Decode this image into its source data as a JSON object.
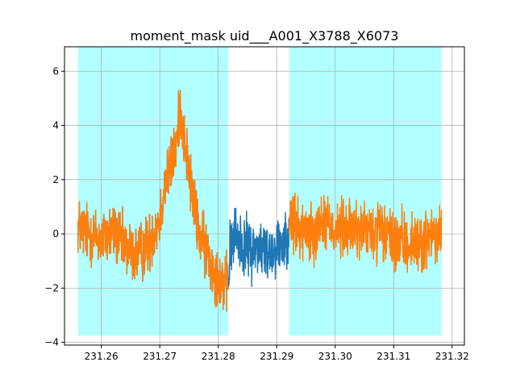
{
  "chart_data": {
    "type": "line",
    "title": "moment_mask uid___A001_X3788_X6073",
    "xlabel": "",
    "ylabel": "",
    "xlim": [
      231.2537,
      231.3221
    ],
    "ylim": [
      -4.1,
      6.9
    ],
    "grid": true,
    "x_ticks": [
      231.26,
      231.27,
      231.28,
      231.29,
      231.3,
      231.31,
      231.32
    ],
    "x_tick_labels": [
      "231.26",
      "231.27",
      "231.28",
      "231.29",
      "231.30",
      "231.31",
      "231.32"
    ],
    "y_ticks": [
      -4,
      -2,
      0,
      2,
      4,
      6
    ],
    "y_tick_labels": [
      "−4",
      "−2",
      "0",
      "2",
      "4",
      "6"
    ],
    "shaded_regions": [
      {
        "x_start": 231.256,
        "x_end": 231.2817,
        "y_start": -3.75,
        "y_end": 6.9
      },
      {
        "x_start": 231.2921,
        "x_end": 231.3182,
        "y_start": -3.75,
        "y_end": 6.9
      }
    ],
    "series": [
      {
        "color": "#1f77b4",
        "x": [
          231.256,
          231.258,
          231.26,
          231.262,
          231.264,
          231.266,
          231.268,
          231.27,
          231.271,
          231.272,
          231.273,
          231.2735,
          231.274,
          231.275,
          231.276,
          231.277,
          231.278,
          231.279,
          231.28,
          231.281,
          231.2817,
          231.282,
          231.283,
          231.284,
          231.285,
          231.286,
          231.287,
          231.288,
          231.289,
          231.29,
          231.291,
          231.2921,
          231.294,
          231.296,
          231.298,
          231.3,
          231.302,
          231.304,
          231.306,
          231.308,
          231.31,
          231.312,
          231.314,
          231.316,
          231.318
        ],
        "y": [
          0.3,
          0.0,
          -0.2,
          0.1,
          -0.5,
          -0.8,
          -0.4,
          0.6,
          2.0,
          2.5,
          3.5,
          4.8,
          3.8,
          2.3,
          0.8,
          -0.2,
          -0.6,
          -1.2,
          -1.6,
          -1.8,
          -1.9,
          -0.6,
          0.0,
          -0.4,
          -0.5,
          -0.6,
          -0.4,
          -0.7,
          -0.6,
          -0.5,
          -0.3,
          0.3,
          0.2,
          0.1,
          0.5,
          0.2,
          0.1,
          0.2,
          0.0,
          0.1,
          -0.3,
          -0.4,
          -0.3,
          -0.2,
          0.0
        ],
        "noise_amplitude": 0.9,
        "x_start": 231.256,
        "x_end": 231.2921
      },
      {
        "color": "#ff7f0e",
        "x": [
          231.256,
          231.258,
          231.26,
          231.262,
          231.264,
          231.266,
          231.268,
          231.27,
          231.271,
          231.272,
          231.273,
          231.2735,
          231.274,
          231.275,
          231.276,
          231.277,
          231.278,
          231.279,
          231.28,
          231.281,
          231.2817,
          231.282,
          231.283,
          231.284,
          231.285,
          231.286,
          231.287,
          231.288,
          231.289,
          231.29,
          231.291,
          231.2921,
          231.294,
          231.296,
          231.298,
          231.3,
          231.302,
          231.304,
          231.306,
          231.308,
          231.31,
          231.312,
          231.314,
          231.316,
          231.318
        ],
        "y": [
          0.3,
          0.0,
          -0.2,
          0.1,
          -0.5,
          -0.8,
          -0.4,
          0.6,
          2.0,
          2.5,
          3.5,
          4.8,
          3.8,
          2.3,
          0.8,
          -0.2,
          -0.6,
          -1.2,
          -1.6,
          -1.8,
          -1.9,
          -0.6,
          0.0,
          -0.4,
          -0.5,
          -0.6,
          -0.4,
          -0.7,
          -0.6,
          -0.5,
          -0.3,
          0.3,
          0.2,
          0.1,
          0.5,
          0.2,
          0.1,
          0.2,
          0.0,
          0.1,
          -0.3,
          -0.4,
          -0.3,
          -0.2,
          0.0
        ],
        "noise_amplitude": 0.9,
        "segments": [
          [
            231.256,
            231.2817
          ],
          [
            231.2921,
            231.3182
          ]
        ]
      }
    ]
  }
}
